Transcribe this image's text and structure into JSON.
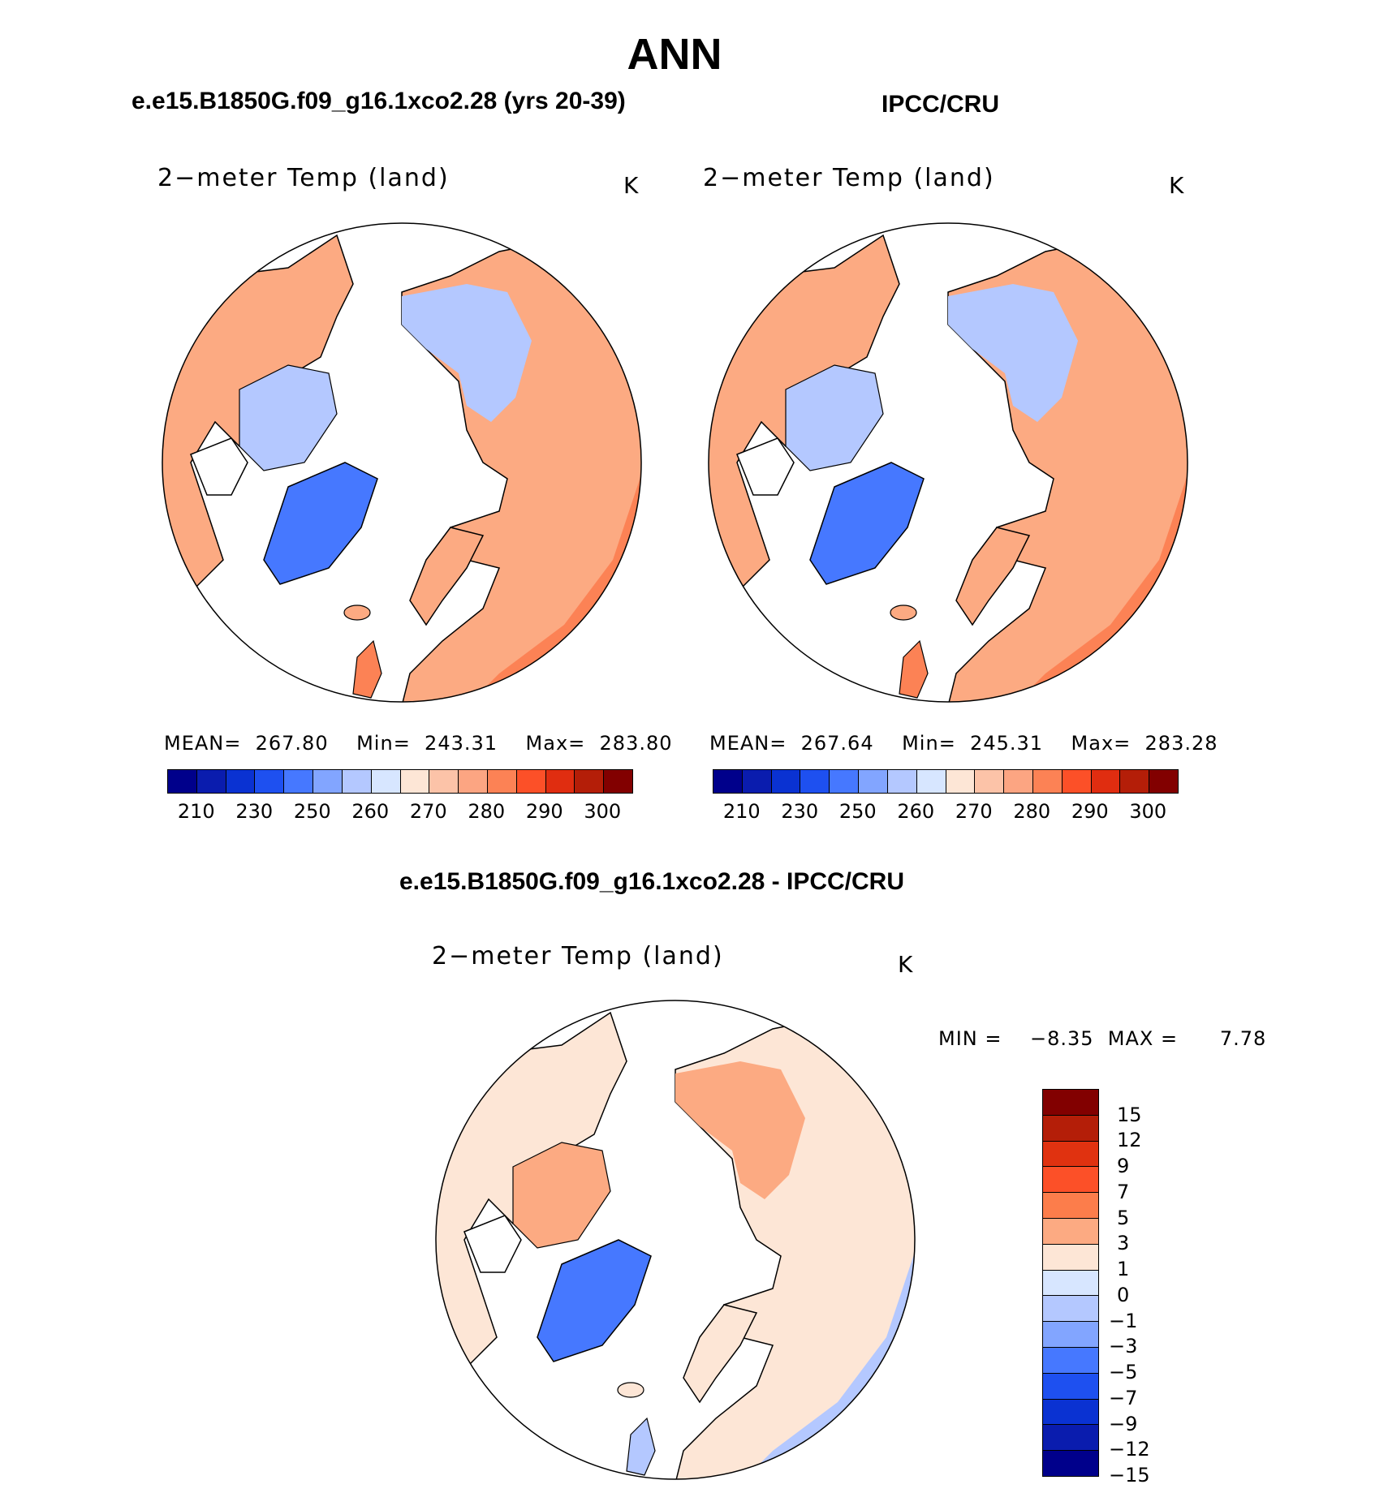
{
  "title": "ANN",
  "panels": [
    {
      "id": "model",
      "subtitle": "e.e15.B1850G.f09_g16.1xco2.28 (yrs 20-39)",
      "variable": "2−meter Temp (land)",
      "unit": "K",
      "stats_text": "MEAN=  267.80    Min=  243.31    Max=  283.80",
      "stats": {
        "mean": 267.8,
        "min": 243.31,
        "max": 283.8
      }
    },
    {
      "id": "obs",
      "subtitle": "IPCC/CRU",
      "variable": "2−meter Temp (land)",
      "unit": "K",
      "stats_text": "MEAN=  267.64    Min=  245.31    Max=  283.28",
      "stats": {
        "mean": 267.64,
        "min": 245.31,
        "max": 283.28
      }
    }
  ],
  "diff_panel": {
    "subtitle": "e.e15.B1850G.f09_g16.1xco2.28 - IPCC/CRU",
    "variable": "2−meter Temp (land)",
    "unit": "K",
    "minmax_text": "MIN =    −8.35  MAX =      7.78",
    "stats": {
      "min": -8.35,
      "max": 7.78
    }
  },
  "abs_colorbar": {
    "colors": [
      "#00008b",
      "#0a1cae",
      "#0a32d2",
      "#1e50f0",
      "#4678ff",
      "#82a5ff",
      "#b4c8ff",
      "#d7e6ff",
      "#fde6d6",
      "#fcc3a8",
      "#fca582",
      "#fc8255",
      "#fc5028",
      "#e02d10",
      "#b41e08",
      "#820000"
    ],
    "tick_labels": [
      "210",
      "230",
      "250",
      "260",
      "270",
      "280",
      "290",
      "300"
    ]
  },
  "diff_colorbar": {
    "colors": [
      "#820000",
      "#b41e08",
      "#e03210",
      "#fc5028",
      "#fc7d4b",
      "#fcaa82",
      "#fde6d6",
      "#d7e6ff",
      "#b4c8ff",
      "#82a5ff",
      "#4678ff",
      "#1e50f0",
      "#0a32d2",
      "#0a1cae",
      "#00008b"
    ],
    "tick_labels": [
      "15",
      "12",
      "9",
      "7",
      "5",
      "3",
      "1",
      "0",
      "−1",
      "−3",
      "−5",
      "−7",
      "−9",
      "−12",
      "−15"
    ]
  },
  "map_colors": {
    "land_warm": "#fcaa82",
    "land_light": "#fde6d6",
    "land_cold": "#b4c8ff",
    "greenland": "#4678ff",
    "ocean": "#ffffff"
  }
}
